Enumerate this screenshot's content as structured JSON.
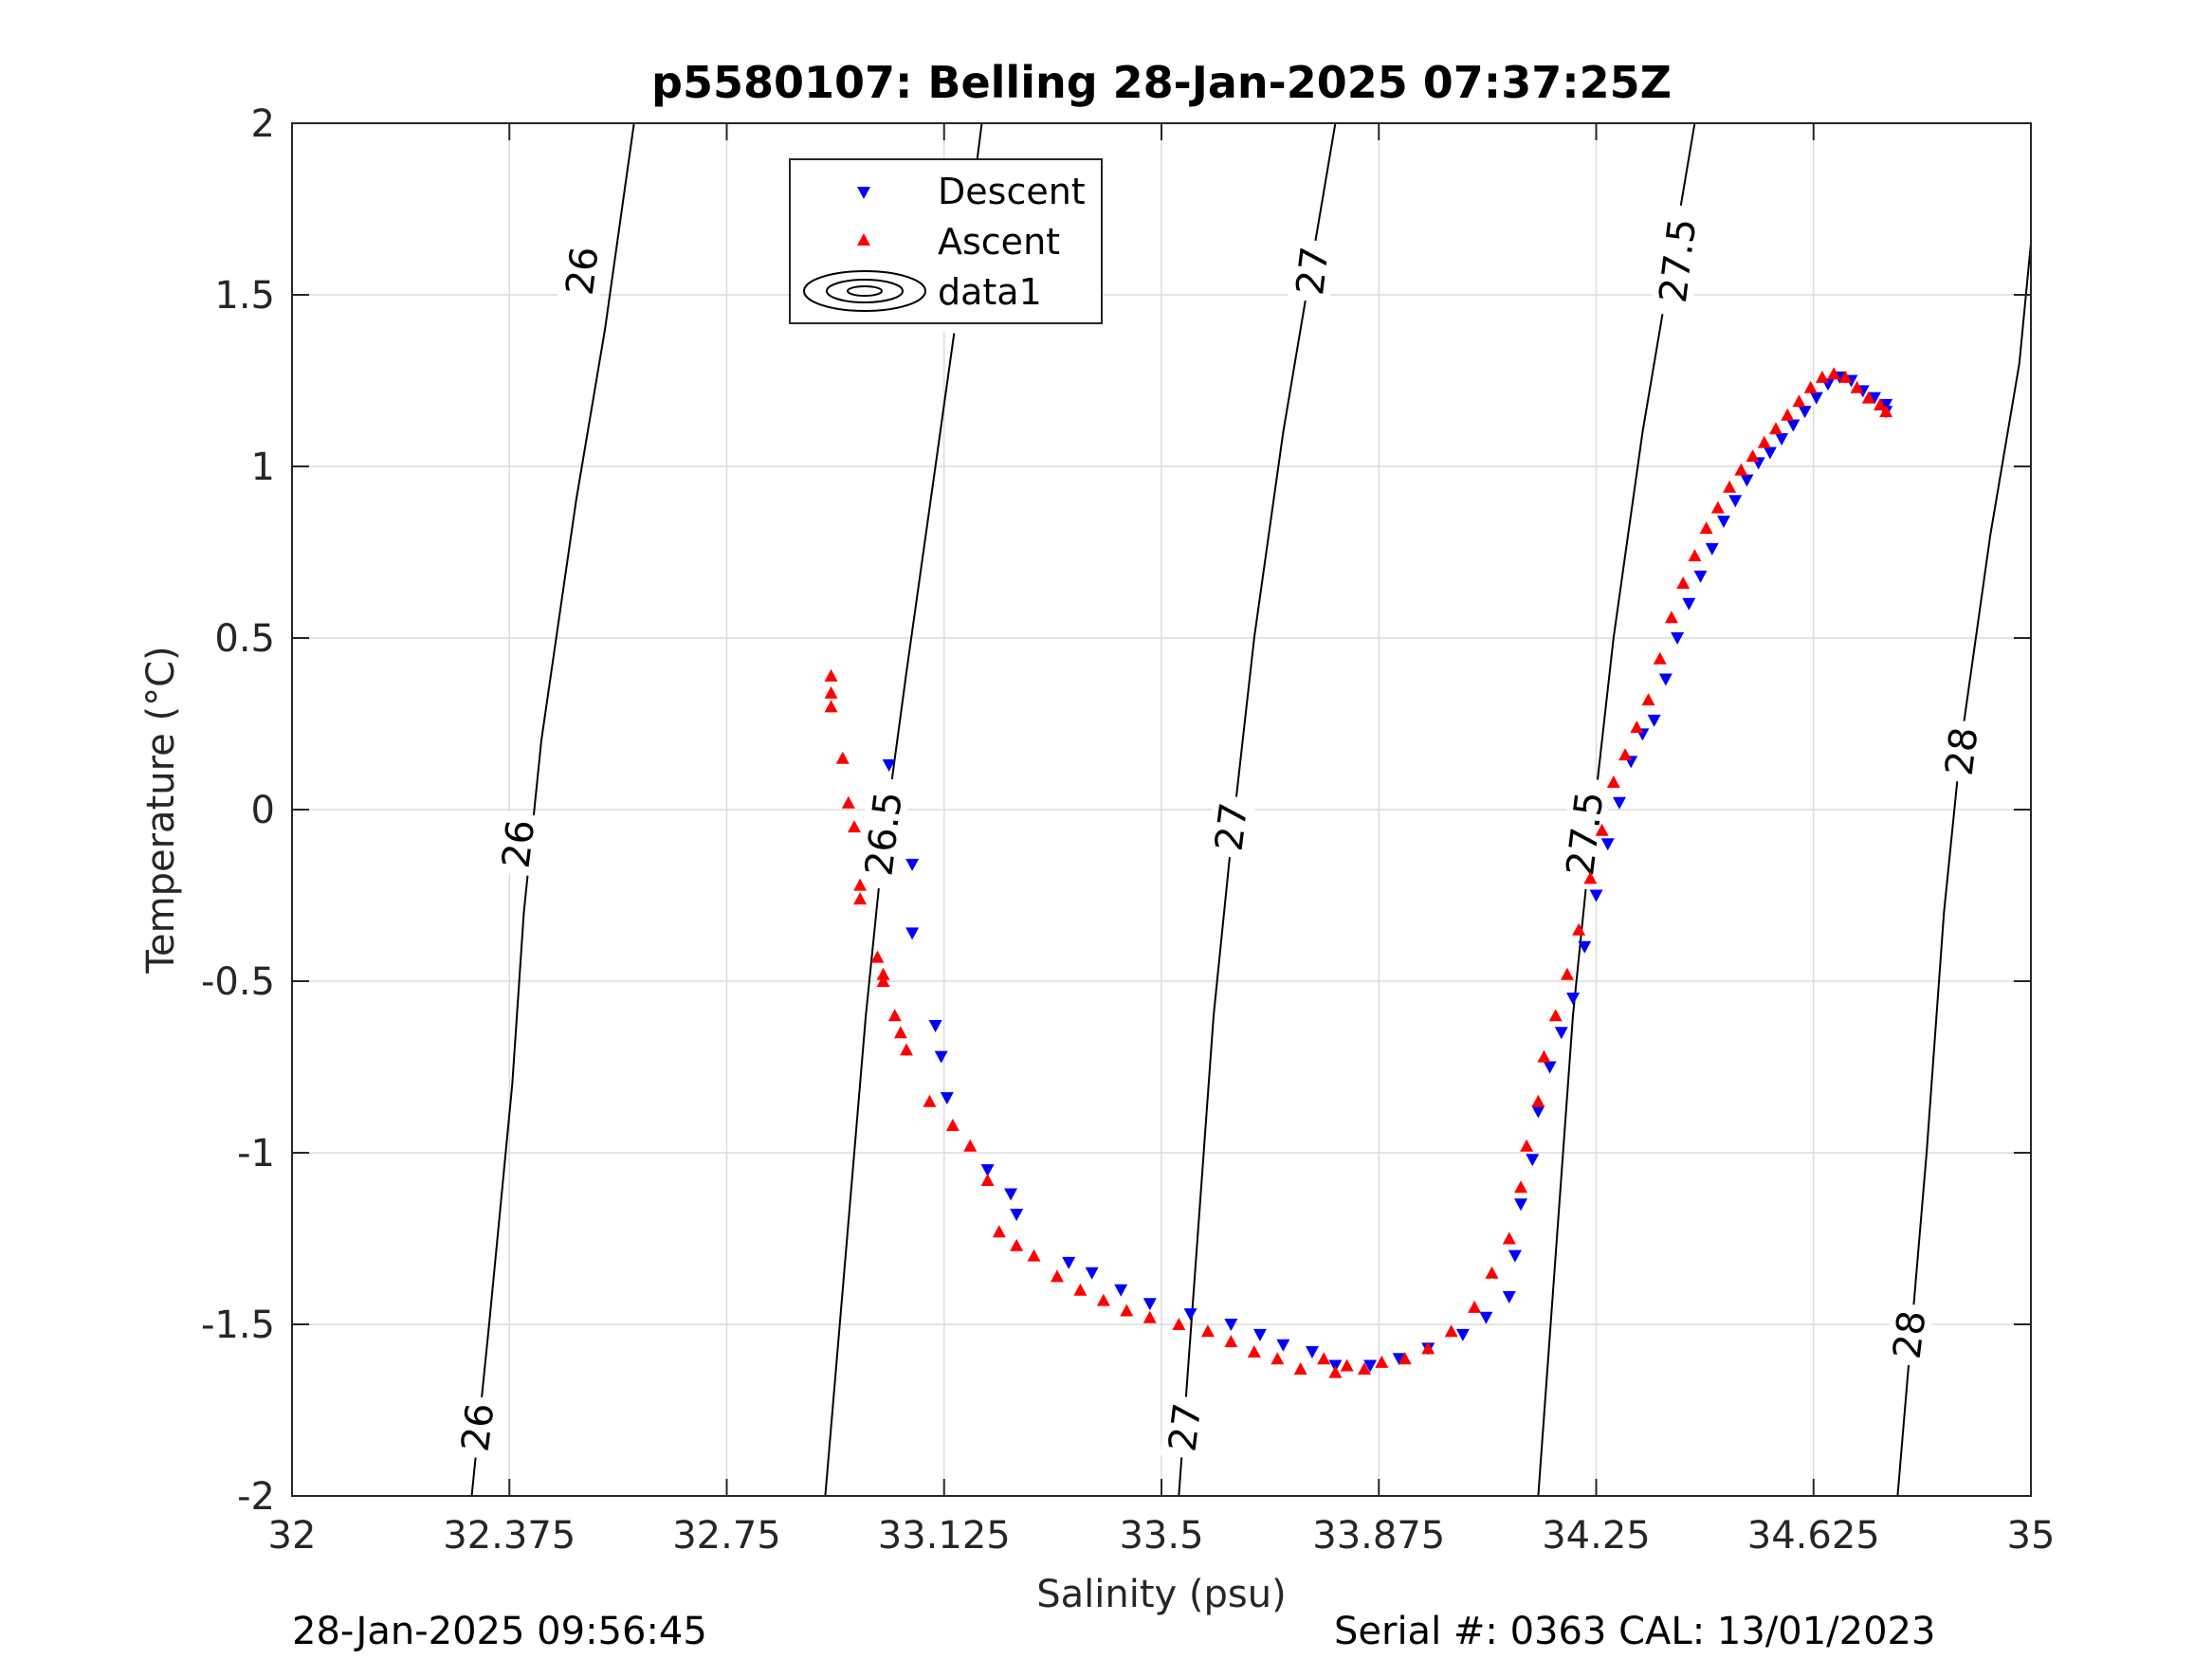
{
  "chart_data": {
    "type": "scatter",
    "title": "p5580107: Belling 28-Jan-2025 07:37:25Z",
    "xlabel": "Salinity (psu)",
    "ylabel": "Temperature (°C)",
    "xlim": [
      32,
      35
    ],
    "ylim": [
      -2,
      2
    ],
    "x_ticks": [
      "32",
      "32.375",
      "32.75",
      "33.125",
      "33.5",
      "33.875",
      "34.25",
      "34.625",
      "35"
    ],
    "y_ticks": [
      "2",
      "1.5",
      "1",
      "0.5",
      "0",
      "-0.5",
      "-1",
      "-1.5",
      "-2"
    ],
    "grid": true,
    "legend_position": "top-center",
    "legend": [
      "Descent",
      "Ascent",
      "data1"
    ],
    "contours": [
      {
        "level": "26",
        "points": [
          [
            32.31,
            -2
          ],
          [
            32.34,
            -1.5
          ],
          [
            32.38,
            -0.8
          ],
          [
            32.4,
            -0.3
          ],
          [
            32.43,
            0.2
          ],
          [
            32.49,
            0.9
          ],
          [
            32.54,
            1.4
          ],
          [
            32.59,
            2.0
          ]
        ]
      },
      {
        "level": "26.5",
        "points": [
          [
            32.92,
            -2
          ],
          [
            32.96,
            -1.2
          ],
          [
            32.99,
            -0.6
          ],
          [
            33.02,
            -0.1
          ],
          [
            33.06,
            0.4
          ],
          [
            33.11,
            1.0
          ],
          [
            33.16,
            1.6
          ],
          [
            33.19,
            2.0
          ]
        ]
      },
      {
        "level": "27",
        "points": [
          [
            33.53,
            -2
          ],
          [
            33.56,
            -1.3
          ],
          [
            33.59,
            -0.6
          ],
          [
            33.62,
            -0.1
          ],
          [
            33.66,
            0.5
          ],
          [
            33.71,
            1.1
          ],
          [
            33.76,
            1.6
          ],
          [
            33.8,
            2.0
          ]
        ]
      },
      {
        "level": "27.5",
        "points": [
          [
            34.15,
            -2
          ],
          [
            34.18,
            -1.3
          ],
          [
            34.21,
            -0.6
          ],
          [
            34.24,
            -0.1
          ],
          [
            34.28,
            0.5
          ],
          [
            34.33,
            1.1
          ],
          [
            34.38,
            1.6
          ],
          [
            34.42,
            2.0
          ]
        ]
      },
      {
        "level": "28",
        "points": [
          [
            34.77,
            -2
          ],
          [
            34.79,
            -1.6
          ],
          [
            34.82,
            -1.0
          ],
          [
            34.85,
            -0.3
          ],
          [
            34.88,
            0.2
          ],
          [
            34.93,
            0.8
          ],
          [
            34.98,
            1.3
          ],
          [
            35.0,
            1.65
          ]
        ]
      }
    ],
    "contour_labels": [
      {
        "text": "26",
        "x": 32.32,
        "y": -1.8
      },
      {
        "text": "26",
        "x": 32.39,
        "y": -0.1
      },
      {
        "text": "26",
        "x": 32.5,
        "y": 1.57
      },
      {
        "text": "26.5",
        "x": 33.02,
        "y": -0.07
      },
      {
        "text": "26.5",
        "x": 33.14,
        "y": 1.55
      },
      {
        "text": "27",
        "x": 33.54,
        "y": -1.8
      },
      {
        "text": "27",
        "x": 33.62,
        "y": -0.05
      },
      {
        "text": "27",
        "x": 33.76,
        "y": 1.57
      },
      {
        "text": "27.5",
        "x": 34.23,
        "y": -0.07
      },
      {
        "text": "27.5",
        "x": 34.39,
        "y": 1.6
      },
      {
        "text": "28",
        "x": 34.79,
        "y": -1.53
      },
      {
        "text": "28",
        "x": 34.88,
        "y": 0.17
      }
    ],
    "series": [
      {
        "name": "Descent",
        "color": "#0000ff",
        "marker": "triangle-down",
        "x": [
          33.03,
          33.07,
          33.07,
          33.11,
          33.12,
          33.13,
          33.2,
          33.24,
          33.25,
          33.34,
          33.38,
          33.43,
          33.48,
          33.55,
          33.62,
          33.67,
          33.71,
          33.76,
          33.8,
          33.86,
          33.91,
          33.96,
          34.02,
          34.06,
          34.1,
          34.11,
          34.12,
          34.14,
          34.15,
          34.17,
          34.19,
          34.21,
          34.23,
          34.25,
          34.27,
          34.29,
          34.31,
          34.33,
          34.35,
          34.37,
          34.39,
          34.41,
          34.43,
          34.45,
          34.47,
          34.49,
          34.51,
          34.53,
          34.55,
          34.57,
          34.59,
          34.61,
          34.63,
          34.65,
          34.67,
          34.69,
          34.71,
          34.73,
          34.75,
          34.75
        ],
        "y": [
          0.13,
          -0.16,
          -0.36,
          -0.63,
          -0.72,
          -0.84,
          -1.05,
          -1.12,
          -1.18,
          -1.32,
          -1.35,
          -1.4,
          -1.44,
          -1.47,
          -1.5,
          -1.53,
          -1.56,
          -1.58,
          -1.62,
          -1.62,
          -1.6,
          -1.57,
          -1.53,
          -1.48,
          -1.42,
          -1.3,
          -1.15,
          -1.02,
          -0.88,
          -0.75,
          -0.65,
          -0.55,
          -0.4,
          -0.25,
          -0.1,
          0.02,
          0.14,
          0.22,
          0.26,
          0.38,
          0.5,
          0.6,
          0.68,
          0.76,
          0.84,
          0.9,
          0.96,
          1.01,
          1.04,
          1.08,
          1.12,
          1.16,
          1.2,
          1.24,
          1.26,
          1.25,
          1.22,
          1.2,
          1.18,
          1.16
        ]
      },
      {
        "name": "Ascent",
        "color": "#ff0000",
        "marker": "triangle-up",
        "x": [
          32.93,
          32.93,
          32.93,
          32.95,
          32.96,
          32.97,
          32.98,
          32.98,
          33.01,
          33.02,
          33.02,
          33.04,
          33.05,
          33.06,
          33.1,
          33.14,
          33.17,
          33.2,
          33.22,
          33.25,
          33.28,
          33.32,
          33.36,
          33.4,
          33.44,
          33.48,
          33.53,
          33.58,
          33.62,
          33.66,
          33.7,
          33.74,
          33.78,
          33.8,
          33.82,
          33.85,
          33.88,
          33.92,
          33.96,
          34.0,
          34.04,
          34.07,
          34.1,
          34.12,
          34.13,
          34.15,
          34.16,
          34.18,
          34.2,
          34.22,
          34.24,
          34.26,
          34.28,
          34.3,
          34.32,
          34.34,
          34.36,
          34.38,
          34.4,
          34.42,
          34.44,
          34.46,
          34.48,
          34.5,
          34.52,
          34.54,
          34.56,
          34.58,
          34.6,
          34.62,
          34.64,
          34.66,
          34.68,
          34.7,
          34.72,
          34.74,
          34.75
        ],
        "y": [
          0.39,
          0.34,
          0.3,
          0.15,
          0.02,
          -0.05,
          -0.22,
          -0.26,
          -0.43,
          -0.48,
          -0.5,
          -0.6,
          -0.65,
          -0.7,
          -0.85,
          -0.92,
          -0.98,
          -1.08,
          -1.23,
          -1.27,
          -1.3,
          -1.36,
          -1.4,
          -1.43,
          -1.46,
          -1.48,
          -1.5,
          -1.52,
          -1.55,
          -1.58,
          -1.6,
          -1.63,
          -1.6,
          -1.64,
          -1.62,
          -1.63,
          -1.61,
          -1.6,
          -1.57,
          -1.52,
          -1.45,
          -1.35,
          -1.25,
          -1.1,
          -0.98,
          -0.85,
          -0.72,
          -0.6,
          -0.48,
          -0.35,
          -0.2,
          -0.06,
          0.08,
          0.16,
          0.24,
          0.32,
          0.44,
          0.56,
          0.66,
          0.74,
          0.82,
          0.88,
          0.94,
          0.99,
          1.03,
          1.07,
          1.11,
          1.15,
          1.19,
          1.23,
          1.26,
          1.27,
          1.26,
          1.23,
          1.2,
          1.18,
          1.16
        ]
      }
    ]
  },
  "footer": {
    "left": "28-Jan-2025 09:56:45",
    "right": "Serial #: 0363  CAL: 13/01/2023"
  }
}
